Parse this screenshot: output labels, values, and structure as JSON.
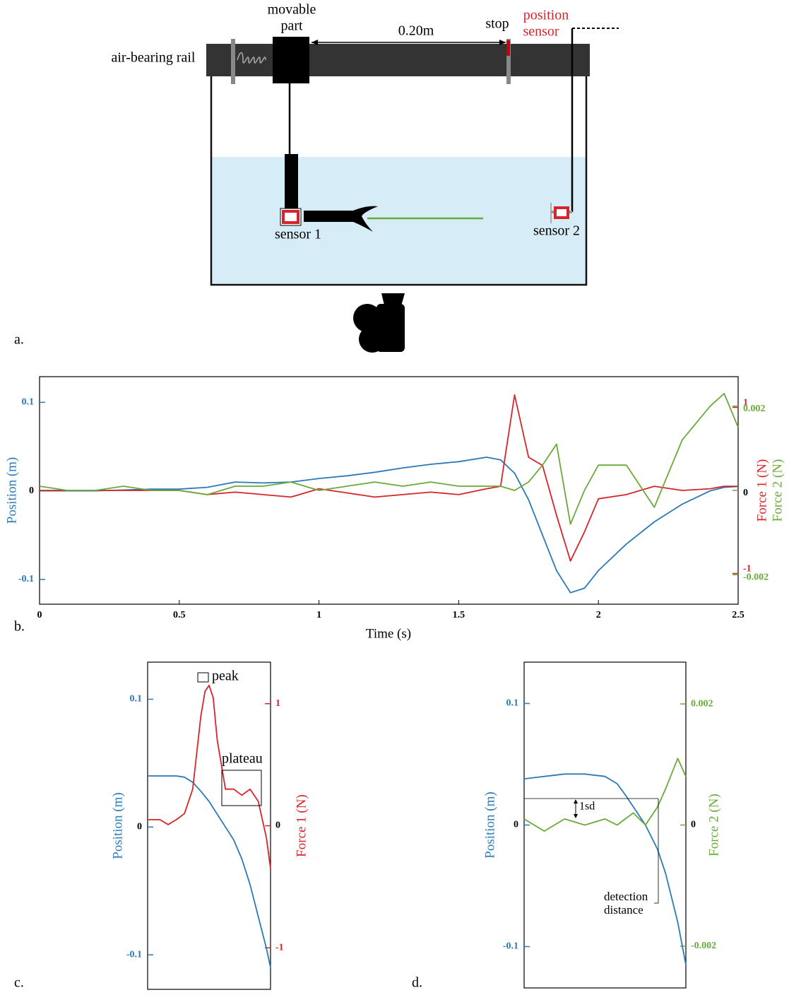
{
  "diagram": {
    "panel_label": "a.",
    "movable_part": [
      "movable",
      "part"
    ],
    "distance": "0.20m",
    "stop": "stop",
    "position_sensor": [
      "position",
      "sensor"
    ],
    "rail": "air-bearing rail",
    "sensor_1": "sensor 1",
    "sensor_2": "sensor 2"
  },
  "chart_data": [
    {
      "type": "line",
      "panel_label": "b.",
      "xlabel": "Time (s)",
      "ylabel": "Position (m)",
      "y2label": "Force 1 (N)",
      "y3label": "Force 2 (N)",
      "xlim": [
        0,
        2.5
      ],
      "xticks": [
        0,
        0.5,
        1,
        1.5,
        2,
        2.5
      ],
      "ylim": [
        -0.128,
        0.129
      ],
      "yticks": [
        -0.1,
        0,
        0.1
      ],
      "y2lim": [
        -1.37,
        1.37
      ],
      "y2ticks": [
        -1,
        1
      ],
      "y3lim": [
        -0.0027,
        0.0027
      ],
      "y3ticks": [
        -0.002,
        0,
        0.002
      ],
      "x": [
        0,
        0.1,
        0.2,
        0.3,
        0.4,
        0.5,
        0.6,
        0.7,
        0.8,
        0.9,
        1.0,
        1.1,
        1.2,
        1.3,
        1.4,
        1.5,
        1.6,
        1.65,
        1.7,
        1.75,
        1.8,
        1.85,
        1.9,
        1.95,
        2.0,
        2.1,
        2.2,
        2.3,
        2.4,
        2.45,
        2.5
      ],
      "series": [
        {
          "name": "Position",
          "color": "#2a7ab8",
          "axis": "y",
          "values": [
            0,
            0,
            0,
            0.001,
            0.002,
            0.002,
            0.004,
            0.01,
            0.009,
            0.01,
            0.014,
            0.017,
            0.021,
            0.026,
            0.03,
            0.033,
            0.038,
            0.035,
            0.02,
            -0.01,
            -0.05,
            -0.09,
            -0.115,
            -0.11,
            -0.09,
            -0.06,
            -0.035,
            -0.015,
            0,
            0.004,
            0.005
          ]
        },
        {
          "name": "Force 1",
          "color": "#d7242b",
          "axis": "y2",
          "values": [
            0,
            0,
            0,
            0,
            0,
            0,
            -0.05,
            -0.02,
            -0.05,
            -0.08,
            0.02,
            -0.03,
            -0.08,
            -0.05,
            -0.02,
            -0.05,
            0.02,
            0.05,
            1.15,
            0.4,
            0.3,
            -0.3,
            -0.85,
            -0.5,
            -0.1,
            -0.05,
            0.05,
            0,
            0.02,
            0.05,
            0.05
          ]
        },
        {
          "name": "Force 2",
          "color": "#6aaa3a",
          "axis": "y3",
          "values": [
            0.0001,
            0,
            0,
            0.0001,
            0,
            0,
            -0.0001,
            0.0001,
            0.0001,
            0.0002,
            0,
            0.0001,
            0.0002,
            0.0001,
            0.0002,
            0.0001,
            0.0001,
            0.0001,
            0,
            0.0002,
            0.0006,
            0.0011,
            -0.0008,
            0,
            0.0006,
            0.0006,
            -0.0004,
            0.0012,
            0.002,
            0.0023,
            0.0015
          ]
        }
      ]
    },
    {
      "type": "line",
      "panel_label": "c.",
      "ylabel": "Position (m)",
      "y2label": "Force 1 (N)",
      "xlim": [
        1.55,
        1.85
      ],
      "ylim": [
        -0.127,
        0.129
      ],
      "yticks": [
        -0.1,
        0,
        0.1
      ],
      "y2lim": [
        -1.34,
        1.34
      ],
      "y2ticks": [
        -1,
        0,
        1
      ],
      "annotations": [
        "peak",
        "plateau"
      ],
      "x": [
        1.55,
        1.58,
        1.6,
        1.62,
        1.64,
        1.66,
        1.68,
        1.69,
        1.7,
        1.71,
        1.72,
        1.74,
        1.76,
        1.78,
        1.8,
        1.82,
        1.84,
        1.85
      ],
      "series": [
        {
          "name": "Position",
          "color": "#2a7ab8",
          "axis": "y",
          "values": [
            0.04,
            0.04,
            0.04,
            0.04,
            0.039,
            0.035,
            0.028,
            0.024,
            0.02,
            0.015,
            0.01,
            0,
            -0.01,
            -0.025,
            -0.045,
            -0.07,
            -0.095,
            -0.11
          ]
        },
        {
          "name": "Force 1",
          "color": "#d7242b",
          "axis": "y2",
          "values": [
            0.05,
            0.05,
            0.01,
            0.05,
            0.1,
            0.3,
            0.9,
            1.1,
            1.15,
            1.05,
            0.7,
            0.3,
            0.3,
            0.25,
            0.3,
            0.2,
            -0.1,
            -0.35
          ]
        }
      ]
    },
    {
      "type": "line",
      "panel_label": "d.",
      "ylabel": "Position (m)",
      "y2label": "Force 2 (N)",
      "xlim": [
        1.45,
        1.85
      ],
      "ylim": [
        -0.134,
        0.134
      ],
      "yticks": [
        -0.1,
        0,
        0.1
      ],
      "y2lim": [
        -0.00269,
        0.00269
      ],
      "y2ticks": [
        -0.002,
        0,
        0.002
      ],
      "annotations": [
        "1sd",
        "detection",
        "distance"
      ],
      "x": [
        1.45,
        1.5,
        1.55,
        1.6,
        1.65,
        1.68,
        1.7,
        1.72,
        1.75,
        1.78,
        1.8,
        1.83,
        1.85
      ],
      "series": [
        {
          "name": "Position",
          "color": "#2a7ab8",
          "axis": "y",
          "values": [
            0.038,
            0.04,
            0.042,
            0.042,
            0.04,
            0.034,
            0.025,
            0.015,
            0,
            -0.02,
            -0.04,
            -0.08,
            -0.115
          ]
        },
        {
          "name": "Force 2",
          "color": "#6aaa3a",
          "axis": "y2",
          "values": [
            0.0001,
            -0.0001,
            0.0001,
            0,
            0.0001,
            0,
            0.0001,
            0.0002,
            0,
            0.0003,
            0.0006,
            0.0011,
            0.0008
          ]
        }
      ]
    }
  ]
}
